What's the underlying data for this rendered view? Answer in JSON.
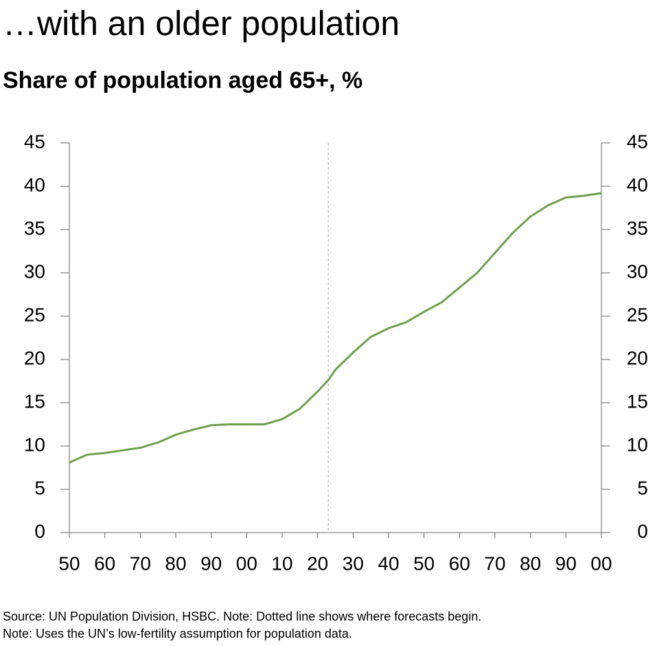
{
  "chart_data": {
    "type": "line",
    "title": "…with an older population",
    "subtitle": "Share of population aged 65+, %",
    "notes": [
      "Source: UN Population Division, HSBC. Note: Dotted line shows where forecasts begin.",
      "Note: Uses the UN’s low-fertility assumption for population data."
    ],
    "x": [
      1950,
      1955,
      1960,
      1965,
      1970,
      1975,
      1980,
      1985,
      1990,
      1995,
      2000,
      2005,
      2010,
      2015,
      2020,
      2023,
      2025,
      2030,
      2035,
      2040,
      2045,
      2050,
      2055,
      2060,
      2065,
      2070,
      2075,
      2080,
      2085,
      2090,
      2095,
      2100
    ],
    "series": [
      {
        "color": "#6fa04f",
        "values": [
          8.1,
          9.0,
          9.2,
          9.5,
          9.8,
          10.4,
          11.3,
          11.9,
          12.4,
          12.5,
          12.5,
          12.5,
          13.1,
          14.3,
          16.3,
          17.6,
          18.8,
          20.8,
          22.6,
          23.6,
          24.3,
          25.5,
          26.6,
          28.3,
          30.0,
          32.3,
          34.6,
          36.5,
          37.8,
          38.7,
          38.9,
          39.2
        ]
      }
    ],
    "forecast_start": 2023,
    "xlim": [
      1950,
      2100
    ],
    "xticks": [
      {
        "value": 1950,
        "label": "50"
      },
      {
        "value": 1960,
        "label": "60"
      },
      {
        "value": 1970,
        "label": "70"
      },
      {
        "value": 1980,
        "label": "80"
      },
      {
        "value": 1990,
        "label": "90"
      },
      {
        "value": 2000,
        "label": "00"
      },
      {
        "value": 2010,
        "label": "10"
      },
      {
        "value": 2020,
        "label": "20"
      },
      {
        "value": 2030,
        "label": "30"
      },
      {
        "value": 2040,
        "label": "40"
      },
      {
        "value": 2050,
        "label": "50"
      },
      {
        "value": 2060,
        "label": "60"
      },
      {
        "value": 2070,
        "label": "70"
      },
      {
        "value": 2080,
        "label": "80"
      },
      {
        "value": 2090,
        "label": "90"
      },
      {
        "value": 2100,
        "label": "00"
      }
    ],
    "ylim": [
      0,
      45
    ],
    "yticks": [
      0,
      5,
      10,
      15,
      20,
      25,
      30,
      35,
      40,
      45
    ],
    "y2lim": [
      0,
      45
    ],
    "y2ticks": [
      0,
      5,
      10,
      15,
      20,
      25,
      30,
      35,
      40,
      45
    ]
  }
}
